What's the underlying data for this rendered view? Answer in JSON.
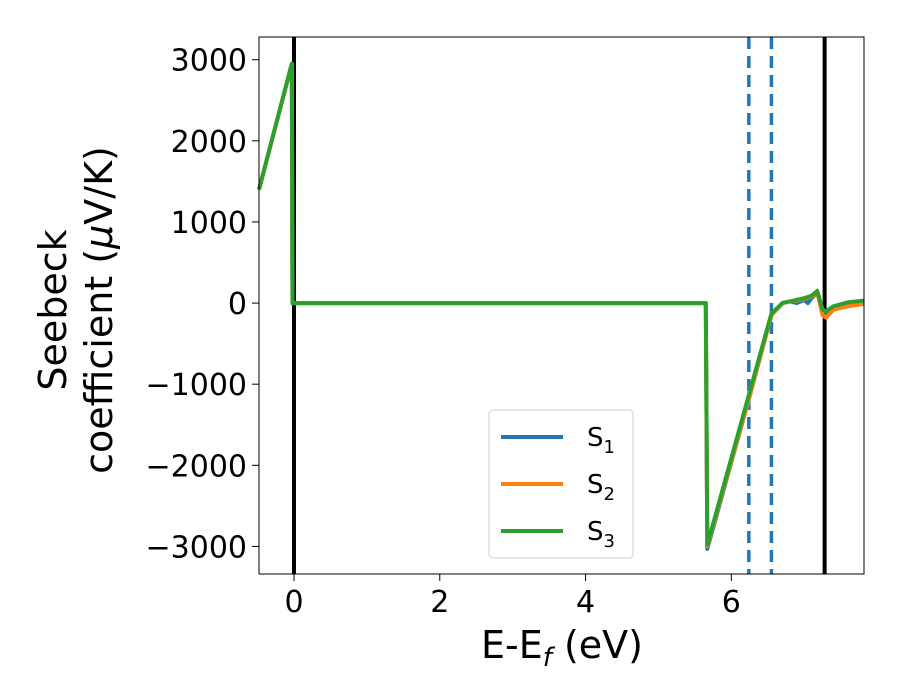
{
  "chart_data": {
    "type": "line",
    "xlabel": "E-E",
    "xlabel_sub": "f",
    "xlabel_unit": " (eV)",
    "ylabel_line1": "Seebeck",
    "ylabel_line2": "coefficient  (",
    "ylabel_mu": "μ",
    "ylabel_unit": "V/K)",
    "xlim": [
      -0.48,
      7.82
    ],
    "ylim": [
      -3340,
      3280
    ],
    "xticks": [
      0,
      2,
      4,
      6
    ],
    "xtick_labels": [
      "0",
      "2",
      "4",
      "6"
    ],
    "yticks": [
      3000,
      2000,
      1000,
      0,
      -1000,
      -2000,
      -3000
    ],
    "ytick_labels": [
      "3000",
      "2000",
      "1000",
      "0",
      "−1000",
      "−2000",
      "−3000"
    ],
    "legend_position": "lower-center",
    "series": [
      {
        "name": "S",
        "name_sub": "1",
        "color": "#1f77b4",
        "x": [
          -0.48,
          -0.03,
          -0.02,
          5.65,
          5.67,
          6.25,
          6.55,
          6.7,
          6.8,
          6.9,
          7.0,
          7.05,
          7.1,
          7.18,
          7.25,
          7.3,
          7.4,
          7.6,
          7.82
        ],
        "y": [
          1400,
          2950,
          0,
          0,
          -3030,
          -1150,
          -150,
          0,
          20,
          0,
          40,
          0,
          60,
          130,
          -120,
          -140,
          -60,
          0,
          10
        ]
      },
      {
        "name": "S",
        "name_sub": "2",
        "color": "#ff7f0e",
        "x": [
          -0.48,
          -0.03,
          -0.02,
          5.65,
          5.67,
          6.25,
          6.55,
          6.7,
          6.8,
          6.9,
          7.0,
          7.1,
          7.18,
          7.25,
          7.3,
          7.4,
          7.6,
          7.82
        ],
        "y": [
          1400,
          2950,
          0,
          0,
          -3000,
          -1150,
          -150,
          0,
          20,
          30,
          50,
          80,
          130,
          -150,
          -180,
          -80,
          -40,
          -10
        ]
      },
      {
        "name": "S",
        "name_sub": "3",
        "color": "#2ca02c",
        "x": [
          -0.48,
          -0.03,
          -0.02,
          5.65,
          5.67,
          6.25,
          6.55,
          6.7,
          6.8,
          6.9,
          7.0,
          7.1,
          7.18,
          7.25,
          7.3,
          7.4,
          7.6,
          7.82
        ],
        "y": [
          1400,
          2950,
          0,
          0,
          -2980,
          -1100,
          -130,
          0,
          20,
          40,
          60,
          90,
          150,
          -80,
          -100,
          -40,
          10,
          30
        ]
      }
    ],
    "vlines": [
      {
        "x": 0.0,
        "style": "solid",
        "color": "#000000"
      },
      {
        "x": 6.24,
        "style": "dashed",
        "color": "#1f77b4"
      },
      {
        "x": 6.55,
        "style": "dashed",
        "color": "#1f77b4"
      },
      {
        "x": 7.28,
        "style": "solid",
        "color": "#000000"
      }
    ]
  }
}
